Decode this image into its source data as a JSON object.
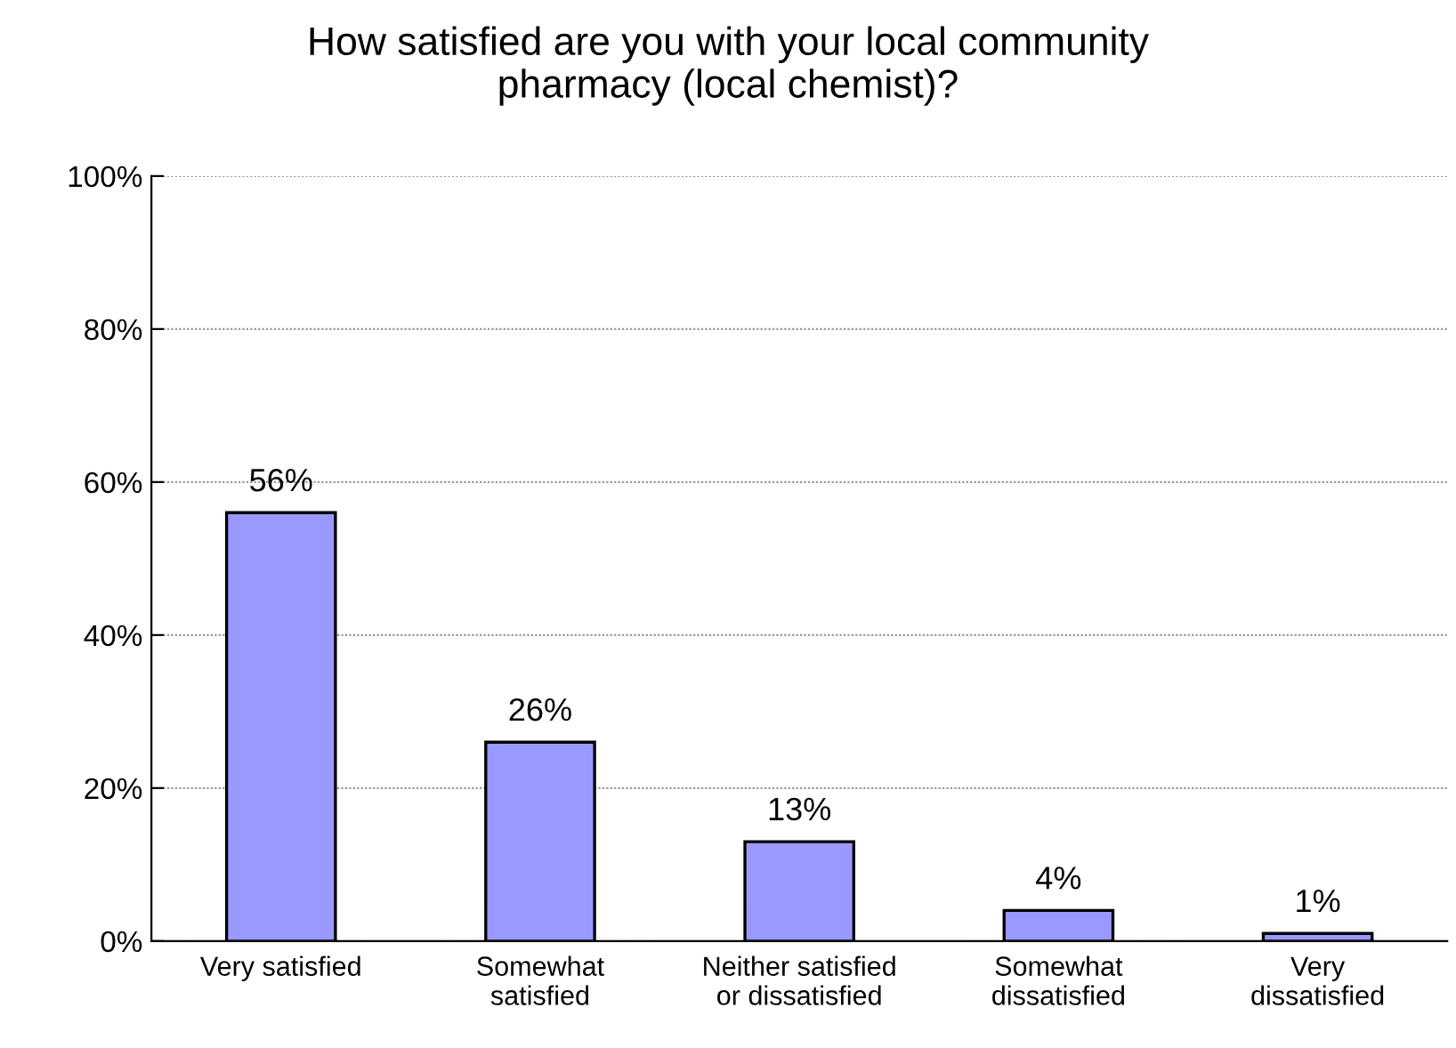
{
  "chart_data": {
    "type": "bar",
    "title": "How satisfied are you with your local community\npharmacy (local chemist)?",
    "categories": [
      "Very satisfied",
      "Somewhat\nsatisfied",
      "Neither satisfied\nor dissatisfied",
      "Somewhat\ndissatisfied",
      "Very\ndissatisfied"
    ],
    "values": [
      56,
      26,
      13,
      4,
      1
    ],
    "value_labels": [
      "56%",
      "26%",
      "13%",
      "4%",
      "1%"
    ],
    "color": "#9999ff",
    "ylim": [
      0,
      100
    ],
    "yticks": [
      {
        "value": 0,
        "label": "0%"
      },
      {
        "value": 20,
        "label": "20%"
      },
      {
        "value": 40,
        "label": "40%"
      },
      {
        "value": 60,
        "label": "60%"
      },
      {
        "value": 80,
        "label": "80%"
      },
      {
        "value": 100,
        "label": "100%"
      }
    ],
    "grid": "y"
  }
}
